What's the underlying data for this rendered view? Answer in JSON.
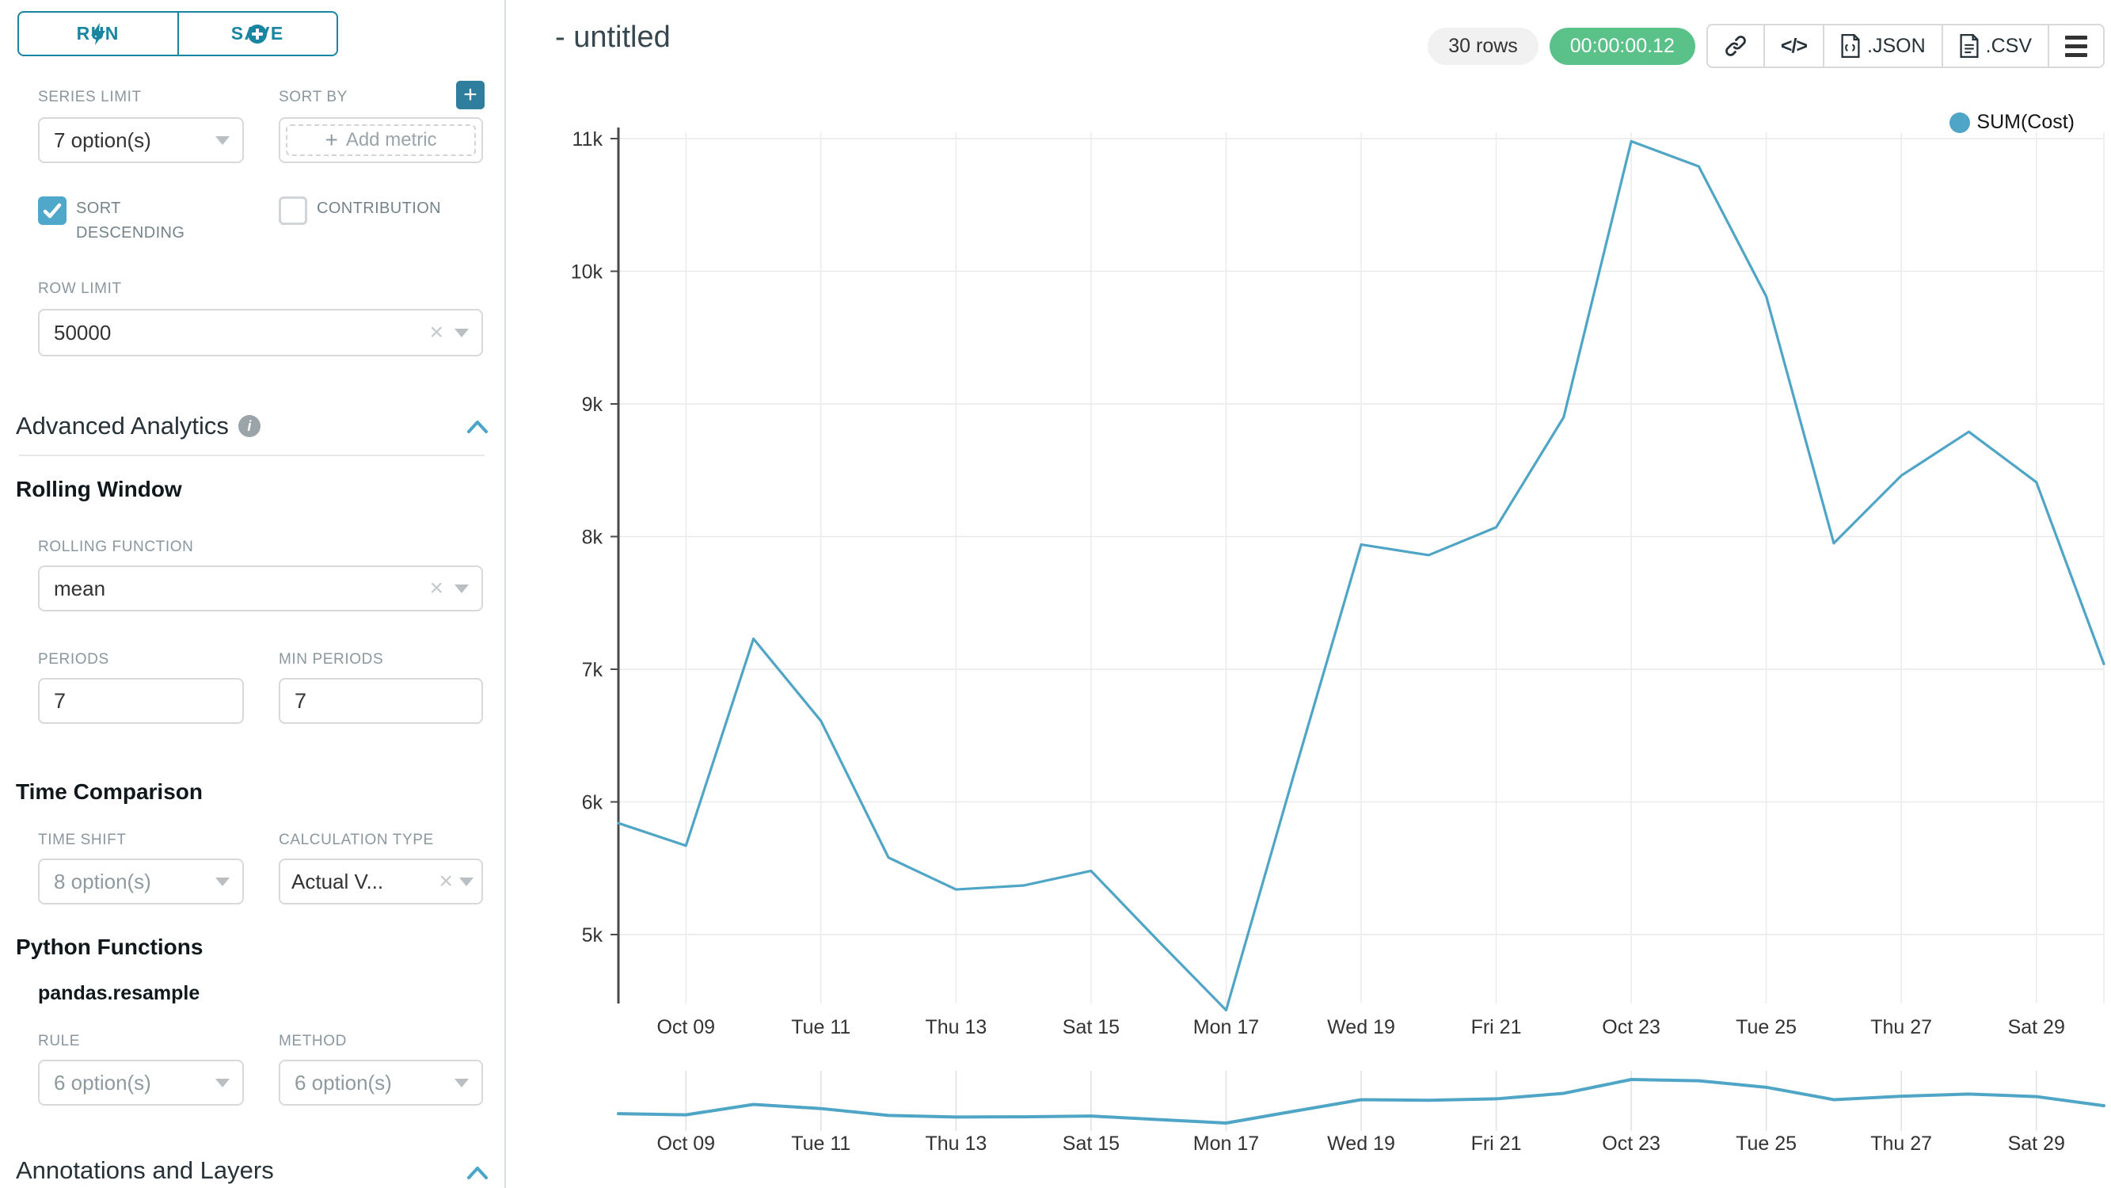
{
  "icons": {
    "clear": "×",
    "plus": "+",
    "info": "i",
    "code": "</>"
  },
  "panel": {
    "run": "RUN",
    "save": "SAVE",
    "series_limit": {
      "label": "SERIES LIMIT",
      "value": "7 option(s)"
    },
    "sort_by": {
      "label": "SORT BY",
      "add_metric": "Add metric"
    },
    "sort_descending_label": "SORT DESCENDING",
    "sort_descending_checked": true,
    "contribution_label": "CONTRIBUTION",
    "contribution_checked": false,
    "row_limit": {
      "label": "ROW LIMIT",
      "value": "50000"
    },
    "advanced_analytics_title": "Advanced Analytics",
    "rolling_window": {
      "title": "Rolling Window",
      "rolling_function_label": "ROLLING FUNCTION",
      "rolling_function_value": "mean",
      "periods_label": "PERIODS",
      "periods_value": "7",
      "min_periods_label": "MIN PERIODS",
      "min_periods_value": "7"
    },
    "time_comparison": {
      "title": "Time Comparison",
      "time_shift_label": "TIME SHIFT",
      "time_shift_value": "8 option(s)",
      "calculation_type_label": "CALCULATION TYPE",
      "calculation_type_value": "Actual V..."
    },
    "python_functions": {
      "title": "Python Functions",
      "subtitle": "pandas.resample",
      "rule_label": "RULE",
      "rule_value": "6 option(s)",
      "method_label": "METHOD",
      "method_value": "6 option(s)"
    },
    "annotations_title": "Annotations and Layers"
  },
  "header": {
    "title": "- untitled",
    "rows_badge": "30 rows",
    "timer_badge": "00:00:00.12",
    "json_label": ".JSON",
    "csv_label": ".CSV"
  },
  "chart_data": {
    "type": "line",
    "legend_label": "SUM(Cost)",
    "legend_position": "top-right",
    "color": "#4fa5c6",
    "grid": true,
    "x": [
      "Oct 08",
      "Oct 09",
      "Oct 10",
      "Oct 11",
      "Oct 12",
      "Oct 13",
      "Oct 14",
      "Oct 15",
      "Oct 16",
      "Oct 17",
      "Oct 18",
      "Oct 19",
      "Oct 20",
      "Oct 21",
      "Oct 22",
      "Oct 23",
      "Oct 24",
      "Oct 25",
      "Oct 26",
      "Oct 27",
      "Oct 28",
      "Oct 29",
      "Oct 30"
    ],
    "series": [
      {
        "name": "SUM(Cost)",
        "values": [
          5840,
          5670,
          7230,
          6610,
          5580,
          5340,
          5370,
          5480,
          4950,
          4430,
          6200,
          7940,
          7860,
          8070,
          8900,
          10980,
          10790,
          9810,
          7950,
          8460,
          8790,
          8410,
          7040
        ]
      }
    ],
    "x_tick_labels": [
      "Oct 09",
      "Tue 11",
      "Thu 13",
      "Sat 15",
      "Mon 17",
      "Wed 19",
      "Fri 21",
      "Oct 23",
      "Tue 25",
      "Thu 27",
      "Sat 29"
    ],
    "x_tick_indices": [
      1,
      3,
      5,
      7,
      9,
      11,
      13,
      15,
      17,
      19,
      21
    ],
    "y_ticks": [
      {
        "label": "11k",
        "value": 11000
      },
      {
        "label": "10k",
        "value": 10000
      },
      {
        "label": "9k",
        "value": 9000
      },
      {
        "label": "8k",
        "value": 8000
      },
      {
        "label": "7k",
        "value": 7000
      },
      {
        "label": "6k",
        "value": 6000
      },
      {
        "label": "5k",
        "value": 5000
      }
    ],
    "ylim": [
      4480,
      11000
    ],
    "mini_chart": {
      "present": true,
      "x_tick_labels": [
        "Oct 09",
        "Tue 11",
        "Thu 13",
        "Sat 15",
        "Mon 17",
        "Wed 19",
        "Fri 21",
        "Oct 23",
        "Tue 25",
        "Thu 27",
        "Sat 29"
      ]
    }
  }
}
